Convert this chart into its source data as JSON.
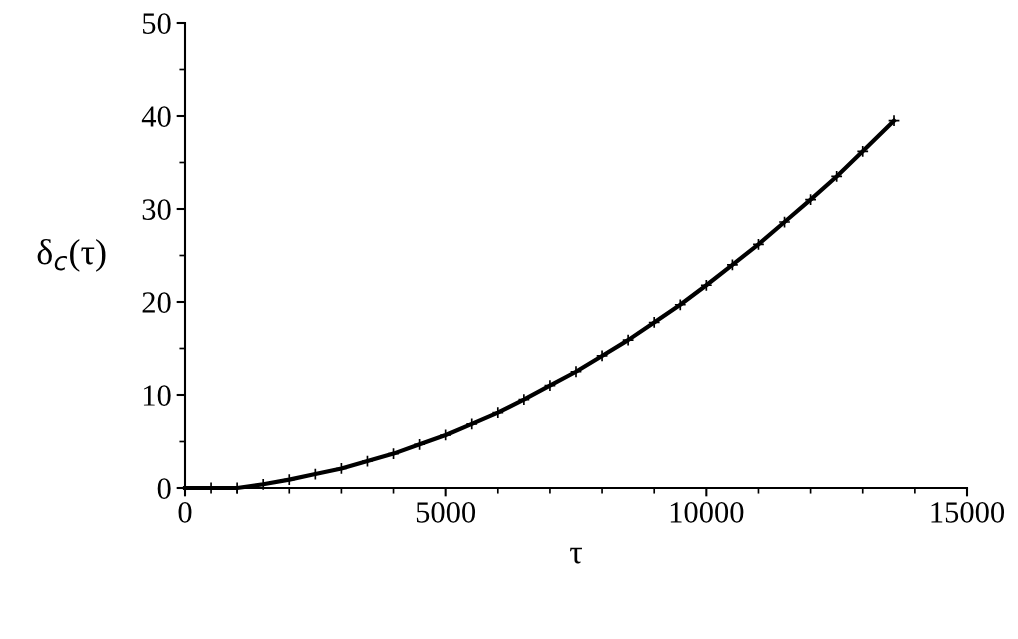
{
  "chart_data": {
    "type": "line",
    "xlabel": "τ",
    "ylabel": "δ$_{c}$(τ)",
    "xlim": [
      0,
      15000
    ],
    "ylim": [
      0,
      50
    ],
    "xticks": [
      0,
      5000,
      10000,
      15000
    ],
    "yticks": [
      0,
      10,
      20,
      30,
      40,
      50
    ],
    "x": [
      0,
      500,
      1000,
      1500,
      2000,
      2500,
      3000,
      3500,
      4000,
      4500,
      5000,
      5500,
      6000,
      6500,
      7000,
      7500,
      8000,
      8500,
      9000,
      9500,
      10000,
      10500,
      11000,
      11500,
      12000,
      12500,
      13000,
      13600
    ],
    "series": [
      {
        "type": "scatter",
        "marker": "cross",
        "color": "#000000",
        "values": [
          null,
          0,
          0,
          0.4,
          0.9,
          1.5,
          2.1,
          2.9,
          3.7,
          4.7,
          5.7,
          6.9,
          8.1,
          9.5,
          11.0,
          12.5,
          14.2,
          15.9,
          17.8,
          19.7,
          21.8,
          24.0,
          26.2,
          28.6,
          31.0,
          33.5,
          36.2,
          39.5
        ]
      },
      {
        "line_style": "solid",
        "color": "#000000",
        "values": [
          0,
          0,
          0,
          0.4,
          0.9,
          1.5,
          2.1,
          2.9,
          3.7,
          4.7,
          5.7,
          6.9,
          8.1,
          9.5,
          11.0,
          12.5,
          14.2,
          15.9,
          17.8,
          19.7,
          21.8,
          24.0,
          26.2,
          28.6,
          31.0,
          33.5,
          36.2,
          39.5
        ]
      }
    ],
    "grid": false,
    "legend": false
  }
}
